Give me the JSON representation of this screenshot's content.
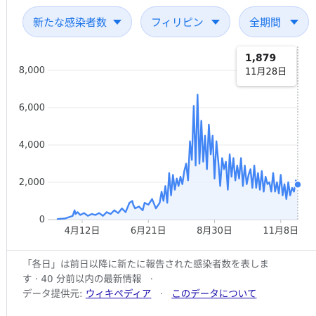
{
  "filters": {
    "metric": "新たな感染者数",
    "region": "フィリピン",
    "period": "全期間"
  },
  "tooltip": {
    "value": "1,879",
    "date": "11月28日"
  },
  "footer": {
    "note_line1": "「各日」は前日以降に新たに報告された感染者数を表しま",
    "note_line2": "す · 40 分前以内の最新情報",
    "note_line2_sep": "·",
    "source_label": "データ提供元:",
    "source_link": "ウィキペディア",
    "about_link": "このデータについて"
  },
  "colors": {
    "line": "#4285f4",
    "fill": "#e8f0fe",
    "chip_bg": "#e8f0fe",
    "chip_text": "#1a73e8"
  },
  "chart_data": {
    "type": "line",
    "x_tick_labels": [
      "4月12日",
      "6月21日",
      "8月30日",
      "11月8日"
    ],
    "x_ticks_day_index": [
      26,
      96,
      166,
      236
    ],
    "ylim": [
      0,
      8000
    ],
    "y_ticks": [
      0,
      2000,
      4000,
      6000,
      8000
    ],
    "y_tick_labels": [
      "0",
      "2,000",
      "4,000",
      "6,000",
      "8,000"
    ],
    "last_point": {
      "date": "11月28日",
      "value": 1879
    },
    "series": [
      {
        "x": [
          0,
          8,
          16,
          18,
          19,
          21,
          24,
          28,
          32,
          36,
          40,
          44,
          48,
          52,
          56,
          60,
          64,
          68,
          72,
          76,
          79,
          80,
          82,
          86,
          90,
          92,
          96,
          100,
          104,
          108,
          110,
          112,
          114,
          116,
          118,
          120,
          122,
          124,
          126,
          128,
          130,
          132,
          134,
          136,
          138,
          140,
          142,
          144,
          146,
          148,
          150,
          152,
          154,
          156,
          158,
          160,
          162,
          164,
          166,
          168,
          170,
          172,
          174,
          176,
          178,
          180,
          182,
          184,
          186,
          188,
          190,
          192,
          194,
          196,
          198,
          200,
          202,
          204,
          206,
          208,
          210,
          212,
          214,
          216,
          218,
          220,
          222,
          224,
          226,
          228,
          230,
          232,
          234,
          236,
          238,
          240,
          242,
          244,
          246,
          248,
          250,
          252,
          254
        ],
        "values": [
          30,
          60,
          200,
          500,
          300,
          400,
          250,
          350,
          200,
          300,
          250,
          350,
          200,
          400,
          300,
          500,
          350,
          600,
          400,
          900,
          1000,
          800,
          600,
          700,
          500,
          900,
          800,
          1100,
          600,
          900,
          1500,
          1000,
          1800,
          900,
          2500,
          1300,
          2400,
          1600,
          2200,
          1800,
          2300,
          1900,
          2600,
          3000,
          2100,
          4200,
          3200,
          6100,
          2900,
          6700,
          3000,
          5300,
          3100,
          4500,
          2700,
          5100,
          3500,
          4500,
          2200,
          4200,
          3100,
          1800,
          3300,
          2700,
          3100,
          1600,
          3500,
          2300,
          3300,
          2100,
          2900,
          2200,
          3300,
          1800,
          2900,
          1900,
          2400,
          2700,
          1700,
          2900,
          1700,
          2500,
          1600,
          2600,
          1500,
          2300,
          1900,
          2000,
          1500,
          2500,
          1500,
          2000,
          1400,
          2400,
          1300,
          1900,
          1100,
          2000,
          1300,
          1700,
          1500,
          2100,
          1879
        ]
      }
    ]
  }
}
